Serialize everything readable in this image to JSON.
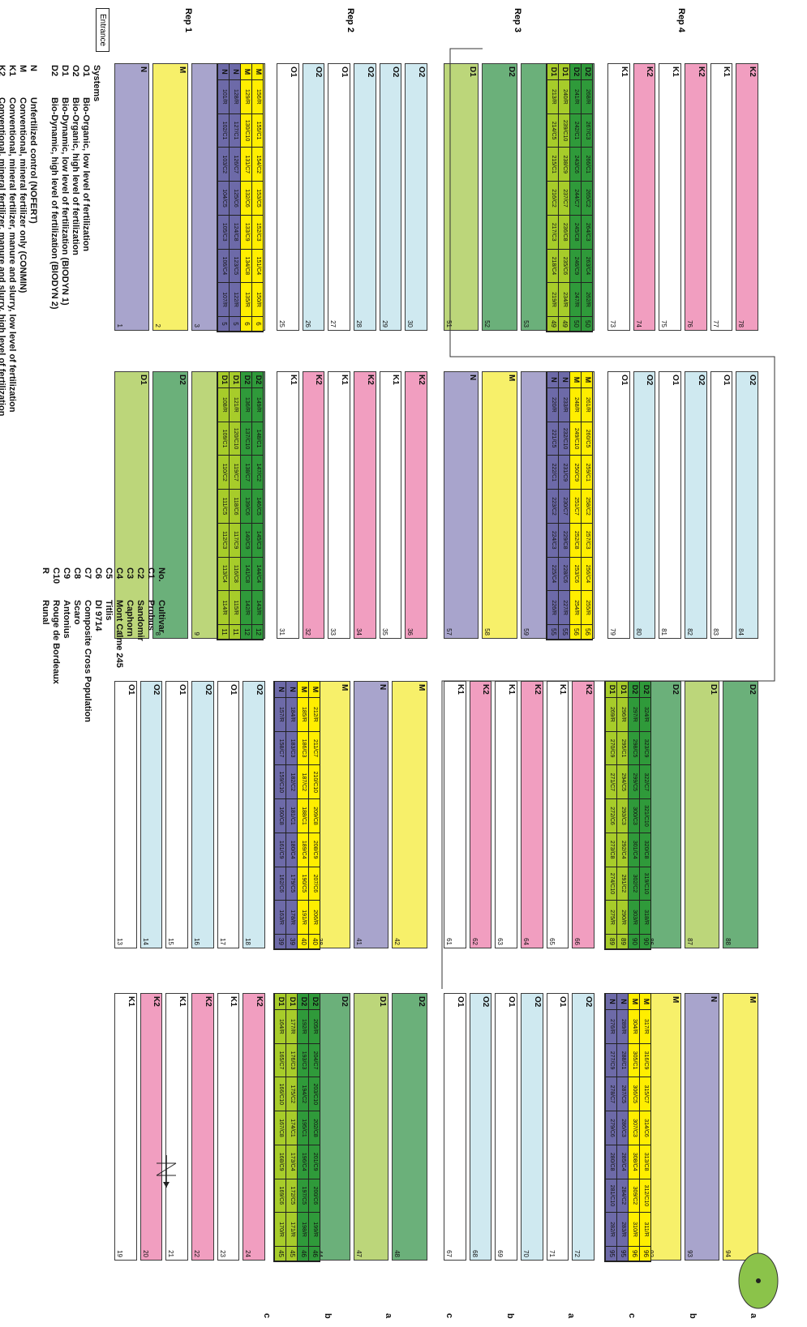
{
  "colors": {
    "K2": "#f19ec0",
    "K1": "#ffffff",
    "O2": "#cfe9f0",
    "O1": "#ffffff",
    "D2": "#6bb07a",
    "D1": "#bcd67a",
    "M": "#f7f06a",
    "N": "#a8a4cc",
    "core_D2": "#2f9a3a",
    "core_D1": "#a7cc2a",
    "core_M": "#ffee00",
    "core_N": "#6d6aa8",
    "tree": "#8bc34a"
  },
  "reps": [
    "Rep 4",
    "Rep 3",
    "Rep 2",
    "Rep 1"
  ],
  "entrance": "Entrance",
  "block_labels": [
    "a",
    "b",
    "c",
    "a",
    "b",
    "c",
    "a",
    "b",
    "c"
  ],
  "columns": [
    {
      "plots": [
        [
          "K2",
          "78"
        ],
        [
          "K1",
          "77"
        ],
        [
          "K2",
          "76"
        ],
        [
          "K1",
          "75"
        ],
        [
          "K2",
          "74"
        ],
        [
          "K1",
          "73"
        ]
      ]
    },
    {
      "plots": [
        [
          "D2",
          "54"
        ],
        [
          "D2",
          "53"
        ],
        [
          "D2",
          "52"
        ],
        [
          "D1",
          "51"
        ]
      ]
    },
    {
      "plots": [
        [
          "O2",
          "30"
        ],
        [
          "O2",
          "29"
        ],
        [
          "O2",
          "28"
        ],
        [
          "O1",
          "27"
        ],
        [
          "O2",
          "26"
        ],
        [
          "O1",
          "25"
        ]
      ]
    },
    {
      "plots": [
        [
          "M",
          "4"
        ],
        [
          "N",
          "3"
        ],
        [
          "M",
          "2"
        ],
        [
          "N",
          "1"
        ]
      ]
    },
    {
      "plots": [
        [
          "O2",
          "84"
        ],
        [
          "O1",
          "83"
        ],
        [
          "O2",
          "82"
        ],
        [
          "O1",
          "81"
        ],
        [
          "O2",
          "80"
        ],
        [
          "O1",
          "79"
        ]
      ]
    },
    {
      "plots": [
        [
          "M",
          "60"
        ],
        [
          "N",
          "59"
        ],
        [
          "M",
          "58"
        ],
        [
          "N",
          "57"
        ]
      ]
    },
    {
      "plots": [
        [
          "K2",
          "36"
        ],
        [
          "K1",
          "35"
        ],
        [
          "K2",
          "34"
        ],
        [
          "K1",
          "33"
        ],
        [
          "K2",
          "32"
        ],
        [
          "K1",
          "31"
        ]
      ]
    },
    {
      "plots": [
        [
          "D2",
          "10"
        ],
        [
          "D1",
          "9"
        ],
        [
          "D2",
          "8"
        ],
        [
          "D1",
          "7"
        ]
      ]
    },
    {
      "plots": [
        [
          "D2",
          "88"
        ],
        [
          "D1",
          "87"
        ],
        [
          "D2",
          "86"
        ],
        [
          "D1",
          "85"
        ]
      ]
    },
    {
      "plots": [
        [
          "K2",
          "66"
        ],
        [
          "K1",
          "65"
        ],
        [
          "K2",
          "64"
        ],
        [
          "K1",
          "63"
        ],
        [
          "K2",
          "62"
        ],
        [
          "K1",
          "61"
        ]
      ]
    },
    {
      "plots": [
        [
          "M",
          "42"
        ],
        [
          "N",
          "41"
        ],
        [
          "M",
          "38"
        ],
        [
          "N",
          "37"
        ]
      ]
    },
    {
      "plots": [
        [
          "O2",
          "18"
        ],
        [
          "O1",
          "17"
        ],
        [
          "O2",
          "16"
        ],
        [
          "O1",
          "15"
        ],
        [
          "O2",
          "14"
        ],
        [
          "O1",
          "13"
        ]
      ]
    },
    {
      "plots": [
        [
          "M",
          "94"
        ],
        [
          "N",
          "93"
        ],
        [
          "M",
          "92"
        ],
        [
          "N",
          "91"
        ]
      ]
    },
    {
      "plots": [
        [
          "O2",
          "72"
        ],
        [
          "O1",
          "71"
        ],
        [
          "O2",
          "70"
        ],
        [
          "O1",
          "69"
        ],
        [
          "O2",
          "68"
        ],
        [
          "O1",
          "67"
        ]
      ]
    },
    {
      "plots": [
        [
          "D2",
          "48"
        ],
        [
          "D1",
          "47"
        ],
        [
          "D2",
          "44"
        ],
        [
          "D1",
          "43"
        ]
      ]
    },
    {
      "plots": [
        [
          "K2",
          "24"
        ],
        [
          "K1",
          "23"
        ],
        [
          "K2",
          "22"
        ],
        [
          "K1",
          "21"
        ],
        [
          "K2",
          "20"
        ],
        [
          "K1",
          "19"
        ]
      ]
    }
  ],
  "cores": [
    {
      "sys": [
        [
          "D2",
          "50"
        ],
        [
          "D1",
          "49"
        ]
      ],
      "rows": [
        [
          "268/R",
          "267/C3",
          "266/C1",
          "265/C2",
          "264/C3",
          "263/C4",
          "262/R"
        ],
        [
          "241/R",
          "242/C1",
          "243/C6",
          "244/C7",
          "245/C8",
          "246/C9",
          "247/R"
        ],
        [
          "240/R",
          "239/C10",
          "238/C9",
          "237/C7",
          "236/C8",
          "235/C6",
          "234/R"
        ],
        [
          "213/R",
          "214/C5",
          "215/C1",
          "216/C2",
          "217/C3",
          "218/C4",
          "219/R"
        ]
      ]
    },
    {
      "sys": [
        [
          "M",
          "6"
        ],
        [
          "N",
          "5"
        ]
      ],
      "rows": [
        [
          "156/R",
          "155/C1",
          "154/C2",
          "153/C5",
          "152/C3",
          "151/C4",
          "150/R"
        ],
        [
          "129/R",
          "130/C10",
          "131/C7",
          "132/C6",
          "133/C9",
          "134/C8",
          "135/R"
        ],
        [
          "128/R",
          "127/C1",
          "126/C7",
          "125/C6",
          "124/C8",
          "123/C5",
          "122/R"
        ],
        [
          "101/R",
          "102/C1",
          "103/C2",
          "104/C5",
          "105/C3",
          "106/C4",
          "107/R"
        ]
      ]
    },
    {
      "sys": [
        [
          "M",
          "56"
        ],
        [
          "N",
          "55"
        ]
      ],
      "rows": [
        [
          "261/R",
          "260/C5",
          "259/C1",
          "258/C2",
          "257/C3",
          "256/C4",
          "255/R"
        ],
        [
          "248/R",
          "249/C10",
          "250/C9",
          "251/C7",
          "252/C8",
          "253/C6",
          "254/R"
        ],
        [
          "233/R",
          "232/C10",
          "231/C9",
          "230/C7",
          "229/C8",
          "228/C6",
          "227/R"
        ],
        [
          "220/R",
          "221/C5",
          "222/C1",
          "223/C2",
          "224/C3",
          "225/C4",
          "226/R"
        ]
      ]
    },
    {
      "sys": [
        [
          "D2",
          "12"
        ],
        [
          "D1",
          "11"
        ]
      ],
      "rows": [
        [
          "149/R",
          "148/C1",
          "147/C2",
          "146/C5",
          "145/C3",
          "144/C4",
          "143/R"
        ],
        [
          "136/R",
          "137/C10",
          "138/C7",
          "139/C6",
          "140/C9",
          "141/C8",
          "142/R"
        ],
        [
          "121/R",
          "120/C10",
          "119/C7",
          "118/C6",
          "117/C9",
          "116/C8",
          "115/R"
        ],
        [
          "108/R",
          "109/C1",
          "110/C2",
          "111/C5",
          "112/C3",
          "113/C4",
          "114/R"
        ]
      ]
    },
    {
      "sys": [
        [
          "D2",
          "90"
        ],
        [
          "D1",
          "89"
        ]
      ],
      "rows": [
        [
          "324/R",
          "323/C9",
          "322/C7",
          "321/C10",
          "320/C8",
          "319/C10",
          "318/R"
        ],
        [
          "297/R",
          "298/C5",
          "299/C5",
          "300/C3",
          "301/C4",
          "302/C2",
          "303/R"
        ],
        [
          "296/R",
          "295/C1",
          "294/C5",
          "293/C3",
          "292/C4",
          "291/C2",
          "290/R"
        ],
        [
          "269/R",
          "270/C9",
          "271/C7",
          "272/C6",
          "273/C8",
          "274/C10",
          "275/R"
        ]
      ]
    },
    {
      "sys": [
        [
          "M",
          "40"
        ],
        [
          "N",
          "39"
        ]
      ],
      "rows": [
        [
          "212/R",
          "211/C7",
          "210/C10",
          "209/C8",
          "208/C9",
          "207/C6",
          "206/R"
        ],
        [
          "185/R",
          "186/C3",
          "187/C2",
          "188/C1",
          "189/C4",
          "190/C5",
          "191/R"
        ],
        [
          "184/R",
          "183/C3",
          "182/C2",
          "181/C1",
          "180/C4",
          "179/C5",
          "178/R"
        ],
        [
          "157/R",
          "158/C7",
          "159/C10",
          "160/C8",
          "161/C9",
          "162/C6",
          "163/R"
        ]
      ]
    },
    {
      "sys": [
        [
          "M",
          "96"
        ],
        [
          "N",
          "95"
        ]
      ],
      "rows": [
        [
          "317/R",
          "316/C9",
          "315/C7",
          "314/C6",
          "313/C8",
          "312/C10",
          "311/R"
        ],
        [
          "304/R",
          "305/C1",
          "306/C5",
          "307/C3",
          "308/C4",
          "309/C2",
          "310/R"
        ],
        [
          "289/R",
          "288/C1",
          "287/C5",
          "286/C3",
          "285/C4",
          "284/C2",
          "283/R"
        ],
        [
          "276/R",
          "277/C9",
          "278/C7",
          "279/C6",
          "280/C8",
          "281/C10",
          "282/R"
        ]
      ]
    },
    {
      "sys": [
        [
          "D2",
          "46"
        ],
        [
          "D1",
          "45"
        ]
      ],
      "rows": [
        [
          "205/R",
          "204/C7",
          "203/C10",
          "202/C8",
          "201/C9",
          "200/C6",
          "199/R"
        ],
        [
          "192/R",
          "193/C3",
          "194/C2",
          "195/C1",
          "196/C4",
          "197/C5",
          "198/R"
        ],
        [
          "177/R",
          "176/C3",
          "175/C2",
          "174/C1",
          "173/C4",
          "172/C5",
          "171/R"
        ],
        [
          "164/R",
          "165/C7",
          "166/C10",
          "167/C8",
          "168/C9",
          "169/C6",
          "170/R"
        ]
      ]
    }
  ],
  "legend_systems": {
    "title": "Systems",
    "items": [
      [
        "O1",
        "Bio-Organic, low level of fertilization"
      ],
      [
        "O2",
        "Bio-Organic, high level of fertilization"
      ],
      [
        "D1",
        "Bio-Dynamic, low level of fertilization (BIODYN 1)"
      ],
      [
        "D2",
        "Bio-Dynamic, high level of fertilization (BIODYN 2)"
      ],
      [
        "",
        ""
      ],
      [
        "N",
        "Unfertilized control (NOFERT)"
      ],
      [
        "M",
        "Conventional, mineral fertilizer only (CONMIN)"
      ],
      [
        "K1",
        "Conventional, mineral fertilizer, manure and slurry, low level of fertilization"
      ],
      [
        "K2",
        "Conventional, mineral fertilizer, manure and slurry, high level of fertilization"
      ]
    ]
  },
  "legend_cultivars": {
    "no_header": "No.",
    "cultivar_header": "Cultivar",
    "items": [
      [
        "C1",
        "Probus"
      ],
      [
        "C2",
        "Sandomir"
      ],
      [
        "C3",
        "Caphorn"
      ],
      [
        "C4",
        "Mont Calme 245"
      ],
      [
        "C5",
        "Titlis"
      ],
      [
        "C6",
        "DI 9714"
      ],
      [
        "C7",
        "Composite Cross Population"
      ],
      [
        "C8",
        "Scaro"
      ],
      [
        "C9",
        "Antonius"
      ],
      [
        "C10",
        "Rouge de Bordeaux"
      ],
      [
        "R",
        "Runal"
      ]
    ]
  }
}
